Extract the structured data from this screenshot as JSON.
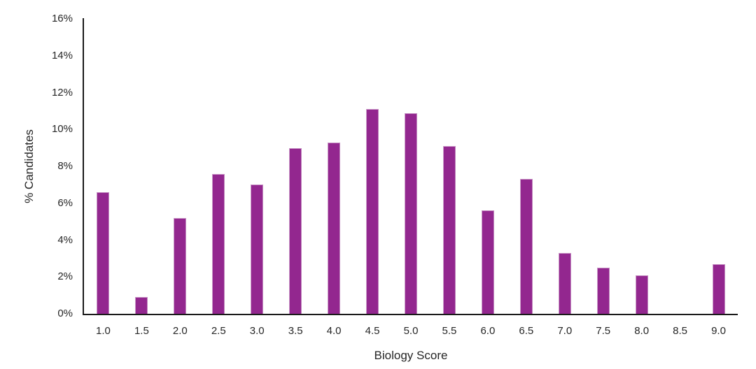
{
  "chart_data": {
    "type": "bar",
    "title": "",
    "xlabel": "Biology Score",
    "ylabel": "% Candidates",
    "categories": [
      "1.0",
      "1.5",
      "2.0",
      "2.5",
      "3.0",
      "3.5",
      "4.0",
      "4.5",
      "5.0",
      "5.5",
      "6.0",
      "6.5",
      "7.0",
      "7.5",
      "8.0",
      "8.5",
      "9.0"
    ],
    "values": [
      6.6,
      0.9,
      5.2,
      7.6,
      7.0,
      9.0,
      9.3,
      11.1,
      10.9,
      9.1,
      5.6,
      7.3,
      3.3,
      2.5,
      2.1,
      0,
      2.7
    ],
    "values_unit": "%",
    "ylim": [
      0,
      16
    ],
    "y_ticks": [
      "0%",
      "2%",
      "4%",
      "6%",
      "8%",
      "10%",
      "12%",
      "14%",
      "16%"
    ],
    "grid": false,
    "legend": false,
    "colors": {
      "bar": "#93278F",
      "bar_border": "#C793C4",
      "axis": "#1A1A1A",
      "text": "#262626",
      "background": "#FFFFFF"
    }
  }
}
